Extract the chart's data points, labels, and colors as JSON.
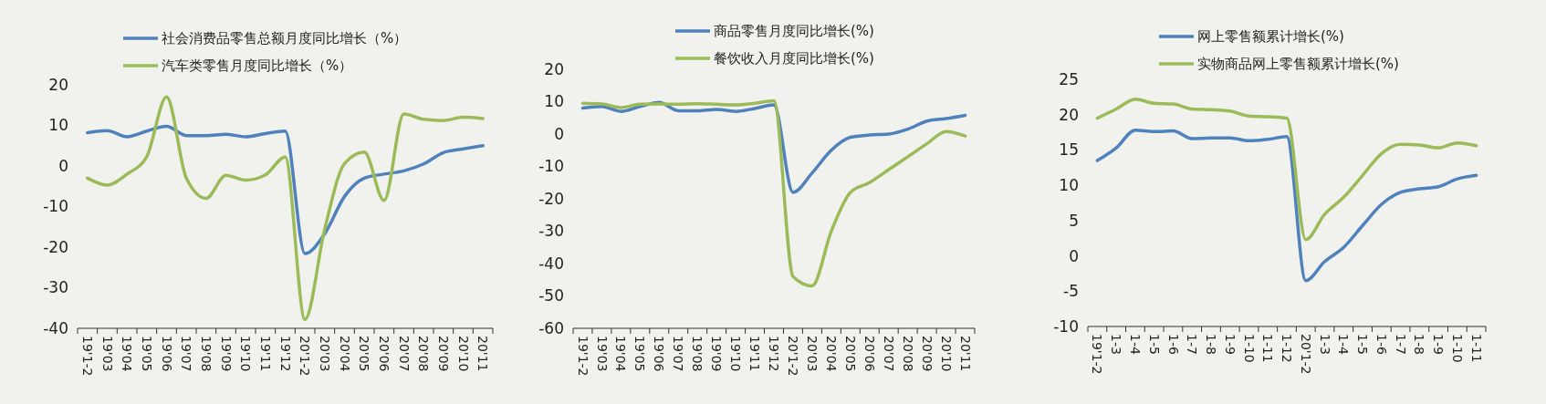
{
  "chart_data": [
    {
      "type": "line",
      "categories": [
        "19'1-2",
        "19'03",
        "19'04",
        "19'05",
        "19'06",
        "19'07",
        "19'08",
        "19'09",
        "19'10",
        "19'11",
        "19'12",
        "20'1-2",
        "20'03",
        "20'04",
        "20'05",
        "20'06",
        "20'07",
        "20'08",
        "20'09",
        "20'10",
        "20'11"
      ],
      "series": [
        {
          "name": "社会消费品零售总额月度同比增长（%）",
          "color": "#4f81bd",
          "values": [
            8.2,
            8.7,
            7.2,
            8.6,
            9.8,
            7.5,
            7.5,
            7.8,
            7.2,
            8.0,
            8.6,
            -21.6,
            -16.7,
            -7.5,
            -3,
            -2,
            -1.2,
            0.5,
            3.3,
            4.2,
            5.0
          ]
        },
        {
          "name": "汽车类零售月度同比增长（%）",
          "color": "#9bbb59",
          "values": [
            -3,
            -4.7,
            -2,
            2.3,
            17,
            -3,
            -8,
            -2.3,
            -3.5,
            -2.2,
            2.2,
            -37.8,
            -15.5,
            0.6,
            3.4,
            -8.5,
            12.8,
            11.5,
            11.2,
            12,
            11.7
          ]
        }
      ],
      "ylim": [
        -40,
        20
      ],
      "yticks": [
        -40,
        -30,
        -20,
        -10,
        0,
        10,
        20
      ],
      "legend": "top",
      "grid": false
    },
    {
      "type": "line",
      "categories": [
        "19'1-2",
        "19'03",
        "19'04",
        "19'05",
        "19'06",
        "19'07",
        "19'08",
        "19'09",
        "19'10",
        "19'11",
        "19'12",
        "20'1-2",
        "20'03",
        "20'04",
        "20'05",
        "20'06",
        "20'07",
        "20'08",
        "20'09",
        "20'10",
        "20'11"
      ],
      "series": [
        {
          "name": "商品零售月度同比增长(%)",
          "color": "#4f81bd",
          "values": [
            8,
            8.5,
            7,
            8.5,
            9.8,
            7.2,
            7.2,
            7.6,
            7,
            7.9,
            9,
            -18,
            -12,
            -5,
            -1,
            -0.3,
            0,
            1.5,
            4,
            4.8,
            5.8
          ]
        },
        {
          "name": "餐饮收入月度同比增长(%)",
          "color": "#9bbb59",
          "values": [
            9.5,
            9.3,
            8.2,
            9.2,
            9.3,
            9.2,
            9.4,
            9.2,
            9,
            9.5,
            10.3,
            -44,
            -46.9,
            -30,
            -18,
            -15,
            -11,
            -7,
            -3,
            0.8,
            -0.6
          ]
        }
      ],
      "ylim": [
        -60,
        20
      ],
      "yticks": [
        -60,
        -50,
        -40,
        -30,
        -20,
        -10,
        0,
        10,
        20
      ],
      "legend": "top",
      "grid": false
    },
    {
      "type": "line",
      "categories": [
        "19'1-2",
        "1-3",
        "1-4",
        "1-5",
        "1-6",
        "1-7",
        "1-8",
        "1-9",
        "1-10",
        "1-11",
        "1-12",
        "20'1-2",
        "1-3",
        "1-4",
        "1-5",
        "1-6",
        "1-7",
        "1-8",
        "1-9",
        "1-10",
        "1-11"
      ],
      "series": [
        {
          "name": "网上零售额累计增长(%)",
          "color": "#4f81bd",
          "values": [
            13.5,
            15.3,
            17.8,
            17.6,
            17.7,
            16.6,
            16.7,
            16.7,
            16.3,
            16.5,
            16.9,
            -3.5,
            -0.8,
            1.2,
            4.3,
            7.3,
            9,
            9.5,
            9.8,
            10.9,
            11.4
          ]
        },
        {
          "name": "实物商品网上零售额累计增长(%)",
          "color": "#9bbb59",
          "values": [
            19.5,
            20.8,
            22.2,
            21.6,
            21.5,
            20.8,
            20.7,
            20.5,
            19.8,
            19.7,
            19.5,
            2.3,
            5.9,
            8.3,
            11.4,
            14.5,
            15.8,
            15.7,
            15.3,
            16,
            15.6
          ]
        }
      ],
      "ylim": [
        -10,
        25
      ],
      "yticks": [
        -10,
        -5,
        0,
        5,
        10,
        15,
        20,
        25
      ],
      "legend": "top",
      "grid": false
    }
  ]
}
